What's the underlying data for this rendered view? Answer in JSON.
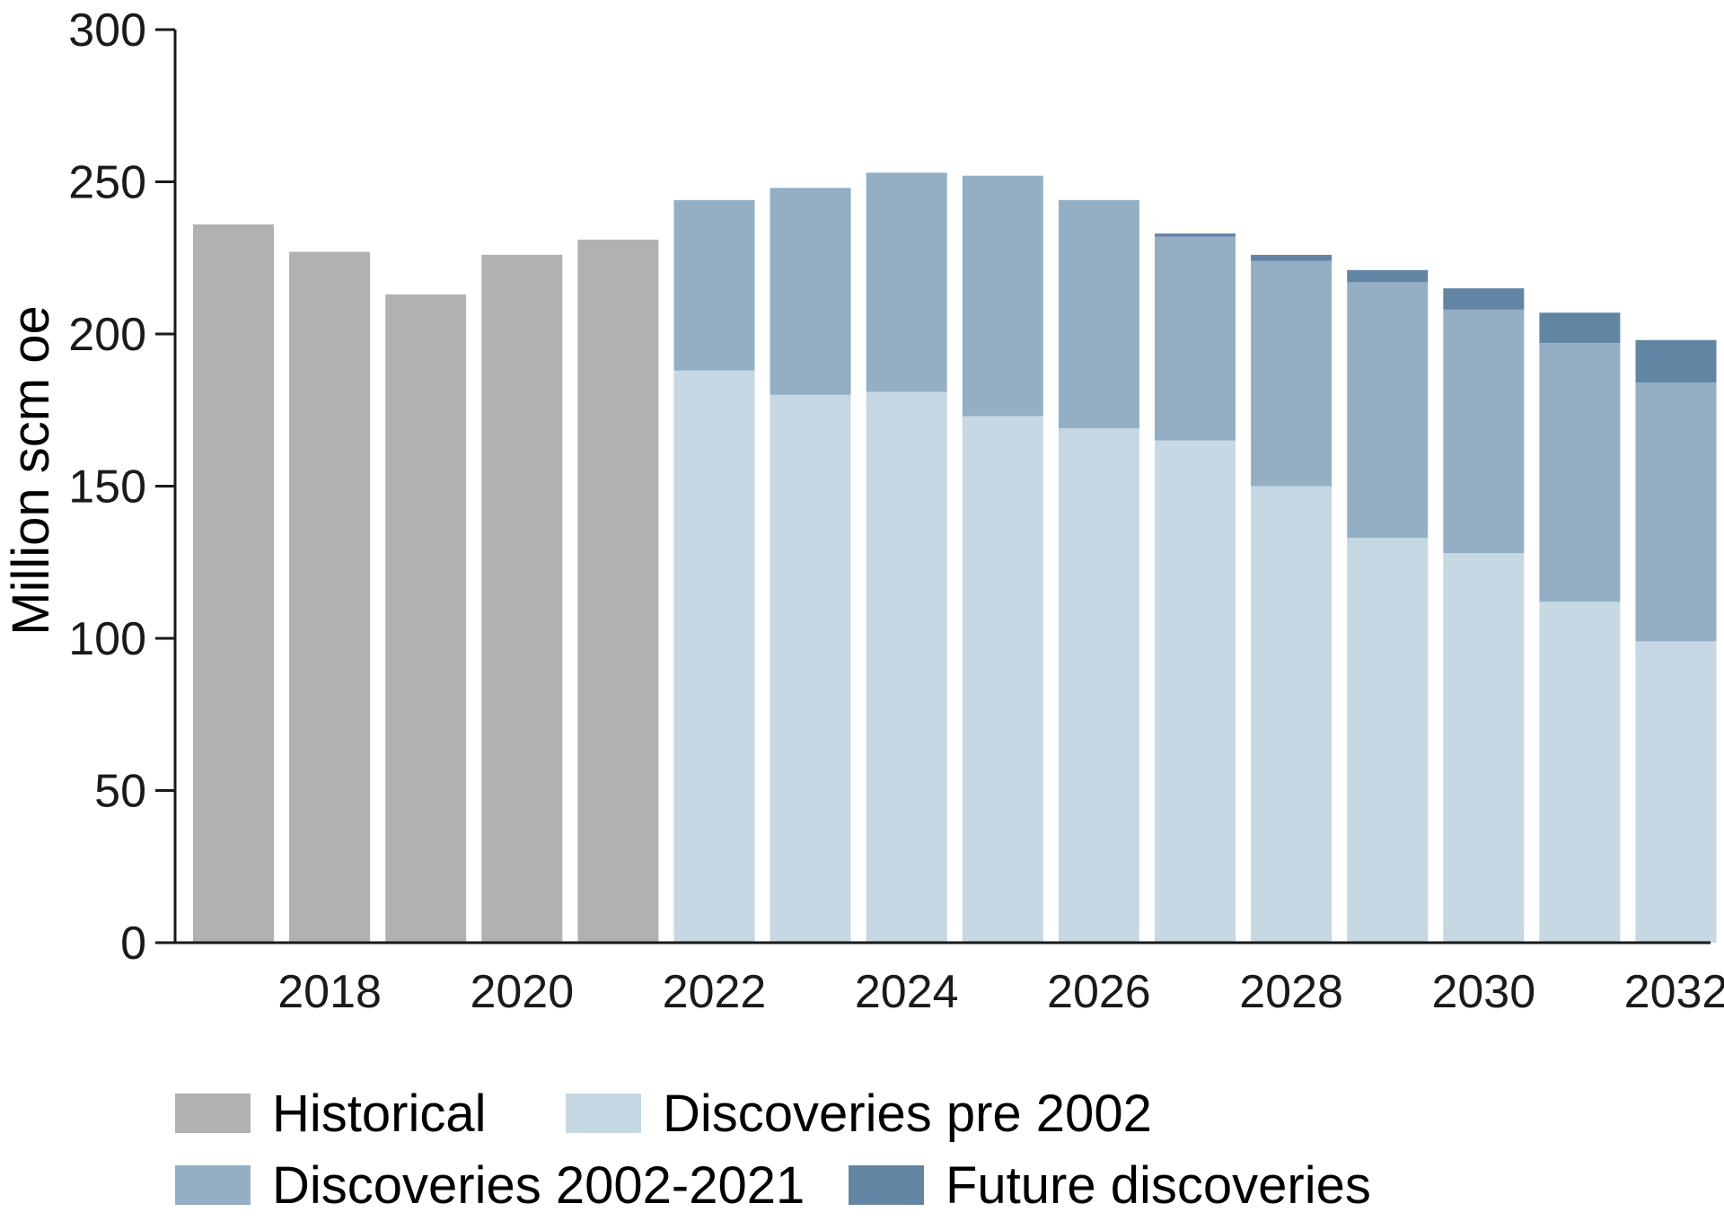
{
  "chart_data": {
    "type": "bar",
    "stacked": true,
    "xlabel": "",
    "ylabel": "Million scm oe",
    "ylim": [
      0,
      300
    ],
    "yticks": [
      0,
      50,
      100,
      150,
      200,
      250,
      300
    ],
    "categories": [
      2017,
      2018,
      2019,
      2020,
      2021,
      2022,
      2023,
      2024,
      2025,
      2026,
      2027,
      2028,
      2029,
      2030,
      2031,
      2032
    ],
    "xtick_labels": [
      "2018",
      "2020",
      "2022",
      "2024",
      "2026",
      "2028",
      "2030",
      "2032"
    ],
    "series": [
      {
        "name": "Historical",
        "color": "#b1b1b1",
        "values": [
          236,
          227,
          213,
          226,
          231,
          0,
          0,
          0,
          0,
          0,
          0,
          0,
          0,
          0,
          0,
          0
        ]
      },
      {
        "name": "Discoveries pre 2002",
        "color": "#c5d8e4",
        "values": [
          0,
          0,
          0,
          0,
          0,
          188,
          180,
          181,
          173,
          169,
          165,
          150,
          133,
          128,
          112,
          99
        ]
      },
      {
        "name": "Discoveries 2002-2021",
        "color": "#94afc4",
        "values": [
          0,
          0,
          0,
          0,
          0,
          56,
          68,
          72,
          79,
          75,
          67,
          74,
          84,
          80,
          85,
          85
        ]
      },
      {
        "name": "Future discoveries",
        "color": "#6285a3",
        "values": [
          0,
          0,
          0,
          0,
          0,
          0,
          0,
          0,
          0,
          0,
          1,
          2,
          4,
          7,
          10,
          14
        ]
      }
    ],
    "legend": {
      "placement": "bottom",
      "entries": [
        {
          "label": "Historical",
          "color": "#b1b1b1"
        },
        {
          "label": "Discoveries pre 2002",
          "color": "#c5d8e4"
        },
        {
          "label": "Discoveries 2002-2021",
          "color": "#94afc4"
        },
        {
          "label": "Future discoveries",
          "color": "#6285a3"
        }
      ]
    },
    "grid": false,
    "axis_color": "#1a1a1a"
  }
}
